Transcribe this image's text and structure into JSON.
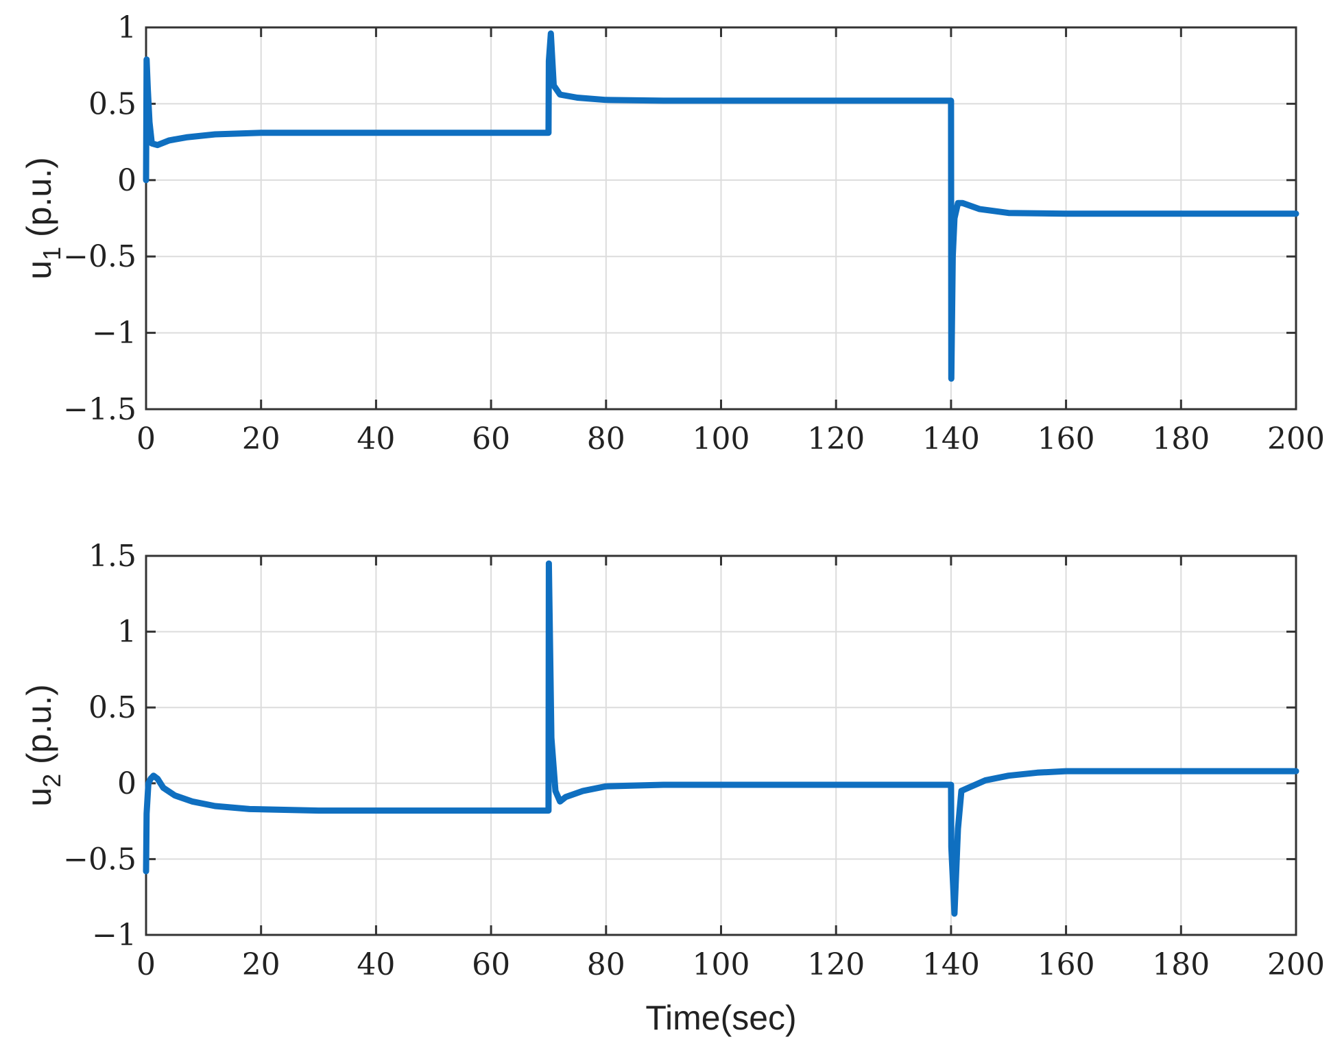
{
  "chart_data": [
    {
      "type": "line",
      "title": "",
      "xlabel": "",
      "ylabel": "u",
      "ylabel_subscript": "1",
      "ylabel_suffix": " (p.u.)",
      "xlim": [
        0,
        200
      ],
      "ylim": [
        -1.5,
        1
      ],
      "xticks": [
        0,
        20,
        40,
        60,
        80,
        100,
        120,
        140,
        160,
        180,
        200
      ],
      "yticks": [
        -1.5,
        -1,
        -0.5,
        0,
        0.5,
        1
      ],
      "ytick_labels": [
        "−1.5",
        "−1",
        "−0.5",
        "0",
        "0.5",
        "1"
      ],
      "grid": true,
      "color": "#0f6fc0",
      "series": [
        {
          "x": [
            0,
            0.1,
            0.3,
            0.6,
            1.0,
            2.0,
            4,
            7,
            12,
            20,
            40,
            70,
            70.05,
            70.4,
            70.9,
            72,
            75,
            80,
            90,
            100,
            120,
            140,
            140.05,
            140.3,
            140.6,
            141.2,
            142,
            145,
            150,
            160,
            180,
            200
          ],
          "y": [
            0,
            0.79,
            0.6,
            0.38,
            0.24,
            0.23,
            0.26,
            0.28,
            0.3,
            0.31,
            0.31,
            0.31,
            0.78,
            0.96,
            0.62,
            0.56,
            0.54,
            0.525,
            0.52,
            0.52,
            0.52,
            0.52,
            -1.3,
            -0.5,
            -0.25,
            -0.15,
            -0.15,
            -0.19,
            -0.215,
            -0.22,
            -0.22,
            -0.22
          ]
        }
      ]
    },
    {
      "type": "line",
      "title": "",
      "xlabel": "Time(sec)",
      "ylabel": "u",
      "ylabel_subscript": "2",
      "ylabel_suffix": " (p.u.)",
      "xlim": [
        0,
        200
      ],
      "ylim": [
        -1,
        1.5
      ],
      "xticks": [
        0,
        20,
        40,
        60,
        80,
        100,
        120,
        140,
        160,
        180,
        200
      ],
      "yticks": [
        -1,
        -0.5,
        0,
        0.5,
        1,
        1.5
      ],
      "ytick_labels": [
        "−1",
        "−0.5",
        "0",
        "0.5",
        "1",
        "1.5"
      ],
      "grid": true,
      "color": "#0f6fc0",
      "series": [
        {
          "x": [
            0,
            0.1,
            0.4,
            0.8,
            1.3,
            2,
            3,
            5,
            8,
            12,
            18,
            30,
            50,
            70,
            70.05,
            70.5,
            71.2,
            72,
            73,
            76,
            80,
            90,
            100,
            120,
            140,
            140.05,
            140.6,
            141.2,
            141.8,
            143,
            146,
            150,
            155,
            160,
            170,
            180,
            200
          ],
          "y": [
            -0.58,
            -0.2,
            0.0,
            0.03,
            0.05,
            0.03,
            -0.03,
            -0.08,
            -0.12,
            -0.15,
            -0.17,
            -0.18,
            -0.18,
            -0.18,
            1.45,
            0.3,
            -0.05,
            -0.12,
            -0.09,
            -0.05,
            -0.02,
            -0.01,
            -0.01,
            -0.01,
            -0.01,
            -0.42,
            -0.86,
            -0.3,
            -0.05,
            -0.03,
            0.02,
            0.05,
            0.07,
            0.08,
            0.08,
            0.08,
            0.08
          ]
        }
      ]
    }
  ]
}
